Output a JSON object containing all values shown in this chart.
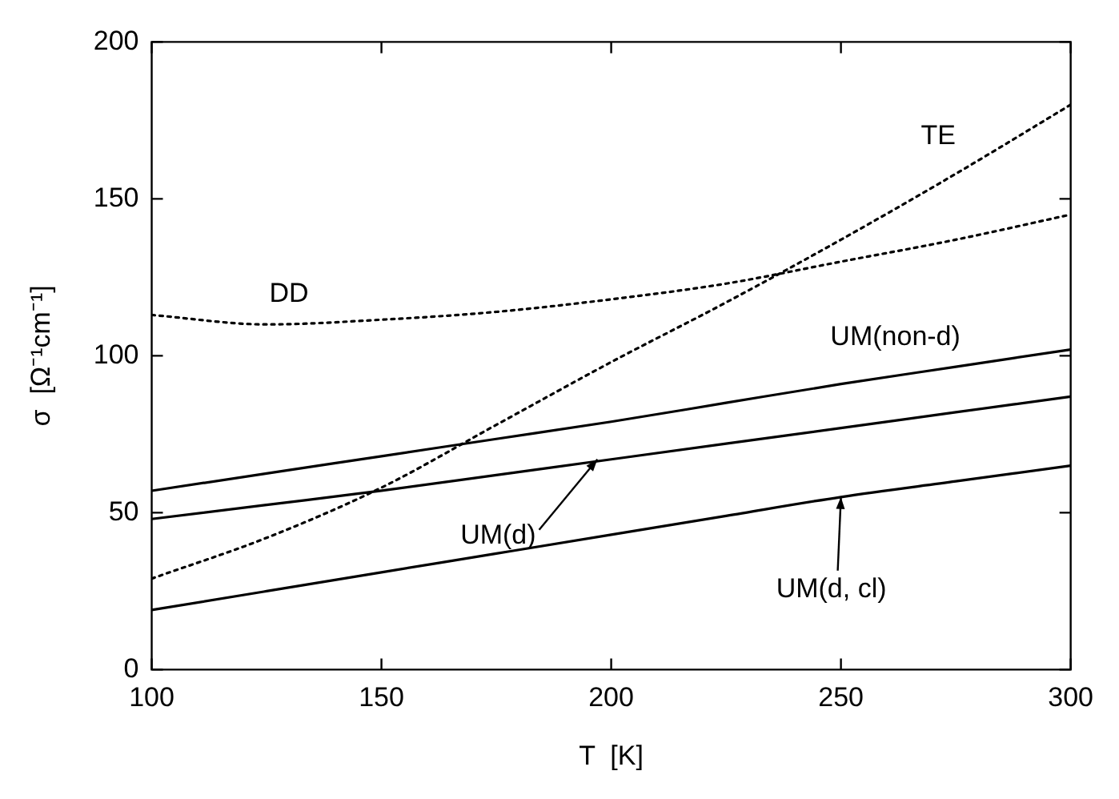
{
  "chart_data": {
    "type": "line",
    "xlabel": "T  [K]",
    "ylabel": "σ  [Ω⁻¹cm⁻¹]",
    "x": [
      100,
      125,
      150,
      175,
      200,
      225,
      250,
      275,
      300
    ],
    "xlim": [
      100,
      300
    ],
    "xticks": [
      100,
      150,
      200,
      250,
      300
    ],
    "ylim": [
      0,
      200
    ],
    "yticks": [
      0,
      50,
      100,
      150,
      200
    ],
    "grid": false,
    "legend": false,
    "marker": "none",
    "series": [
      {
        "color": "#000000",
        "line_style": "dotted",
        "values": [
          113,
          110,
          111.5,
          114,
          118,
          123,
          130,
          137,
          145
        ]
      },
      {
        "color": "#000000",
        "line_style": "dotted",
        "values": [
          29,
          42,
          58,
          78,
          98,
          117,
          137,
          158,
          180
        ]
      },
      {
        "color": "#000000",
        "line_style": "solid",
        "values": [
          57,
          62.5,
          68,
          73.5,
          79,
          85,
          91,
          96.5,
          102
        ]
      },
      {
        "color": "#000000",
        "line_style": "solid",
        "values": [
          48,
          52.5,
          57,
          62,
          67,
          72,
          77,
          82,
          87
        ]
      },
      {
        "color": "#000000",
        "line_style": "solid",
        "values": [
          19,
          25,
          31,
          37,
          43,
          49,
          55,
          60,
          65
        ]
      }
    ],
    "annotations": [
      {
        "text": "DD",
        "x": 125,
        "y": 110
      },
      {
        "text": "TE",
        "x": 275,
        "y": 158
      },
      {
        "text": "UM(non-d)",
        "x": 250,
        "y": 91
      },
      {
        "text": "UM(d)",
        "x": 197,
        "y": 67
      },
      {
        "text": "UM(d, cl)",
        "x": 250,
        "y": 55
      }
    ]
  }
}
